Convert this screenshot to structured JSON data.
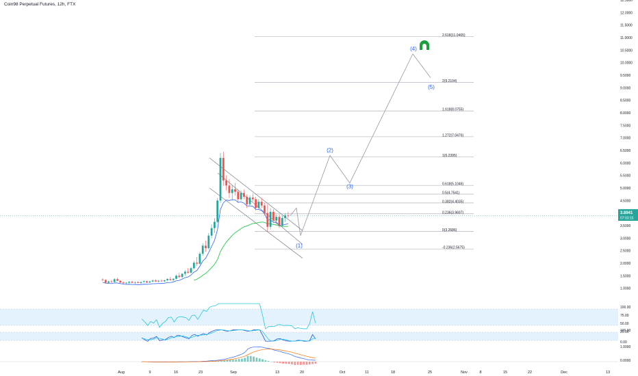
{
  "header": {
    "title": "Coin98 Perpetual Futures, 12h, FTX"
  },
  "price_badge": {
    "price": "3.8941",
    "countdown": "07:03:15"
  },
  "colors": {
    "up": "#26a69a",
    "down": "#ef5350",
    "fib": "#b2b5be",
    "channel": "#787b86",
    "projection": "#9598a1",
    "wave_label": "#2962ff",
    "ema_fast": "#2962ff",
    "ema_slow": "#26c64b",
    "rsi": "#26c6da",
    "band": "#e3f2fd",
    "stoch_k": "#1e53e5",
    "stoch_d": "#26c6da",
    "macd": "#2962ff",
    "signal": "#ff6d00"
  },
  "chart_data": {
    "type": "candlestick",
    "price_axis": {
      "min": 0.5,
      "max": 12.5,
      "ticks": [
        "12.5000",
        "12.0000",
        "11.5000",
        "11.0000",
        "10.5000",
        "10.0000",
        "9.5000",
        "9.0000",
        "8.5000",
        "8.0000",
        "7.5000",
        "7.0000",
        "6.5000",
        "6.0000",
        "5.5000",
        "5.0000",
        "4.5000",
        "4.0000",
        "3.5000",
        "3.0000",
        "2.5000",
        "2.0000",
        "1.5000",
        "1.0000"
      ]
    },
    "x_axis": {
      "labels": [
        "Aug",
        "9",
        "16",
        "23",
        "Sep",
        "13",
        "20",
        "Oct",
        "11",
        "18",
        "25",
        "Nov",
        "8",
        "15",
        "22",
        "Dec",
        "13"
      ]
    },
    "fib_levels": [
      {
        "label": "2.618(11.0465)",
        "value": 11.0465
      },
      {
        "label": "2(9.2104)",
        "value": 9.2104
      },
      {
        "label": "1.618(8.0755)",
        "value": 8.0755
      },
      {
        "label": "1.272(7.0476)",
        "value": 7.0476
      },
      {
        "label": "1(6.2395)",
        "value": 6.2395
      },
      {
        "label": "0.618(5.1046)",
        "value": 5.1046
      },
      {
        "label": "0.5(4.7541)",
        "value": 4.7541
      },
      {
        "label": "0.382(4.4035)",
        "value": 4.4035
      },
      {
        "label": "0.236(3.9697)",
        "value": 3.9697
      },
      {
        "label": "0(3.2686)",
        "value": 3.2686
      },
      {
        "label": "-0.236(2.5675)",
        "value": 2.5675
      }
    ],
    "waves": [
      {
        "label": "(1)",
        "price": 2.85
      },
      {
        "label": "(2)",
        "price": 6.35
      },
      {
        "label": "(3)",
        "price": 5.2
      },
      {
        "label": "(4)",
        "price": 10.4
      },
      {
        "label": "(5)",
        "price": 9.2
      }
    ],
    "projection_prices": [
      3.9,
      4.2,
      3.1,
      6.3,
      5.2,
      10.35,
      9.4
    ],
    "candles": [
      [
        1.35,
        1.4,
        1.28,
        1.33
      ],
      [
        1.33,
        1.36,
        1.2,
        1.22
      ],
      [
        1.22,
        1.3,
        1.18,
        1.27
      ],
      [
        1.27,
        1.33,
        1.22,
        1.25
      ],
      [
        1.25,
        1.4,
        1.24,
        1.36
      ],
      [
        1.36,
        1.42,
        1.28,
        1.3
      ],
      [
        1.3,
        1.33,
        1.2,
        1.23
      ],
      [
        1.23,
        1.28,
        1.18,
        1.2
      ],
      [
        1.2,
        1.25,
        1.16,
        1.22
      ],
      [
        1.22,
        1.28,
        1.19,
        1.26
      ],
      [
        1.26,
        1.3,
        1.2,
        1.22
      ],
      [
        1.22,
        1.27,
        1.18,
        1.24
      ],
      [
        1.24,
        1.29,
        1.2,
        1.21
      ],
      [
        1.21,
        1.26,
        1.18,
        1.25
      ],
      [
        1.25,
        1.32,
        1.22,
        1.28
      ],
      [
        1.28,
        1.3,
        1.2,
        1.23
      ],
      [
        1.23,
        1.3,
        1.21,
        1.27
      ],
      [
        1.27,
        1.35,
        1.24,
        1.31
      ],
      [
        1.31,
        1.36,
        1.25,
        1.27
      ],
      [
        1.27,
        1.33,
        1.24,
        1.3
      ],
      [
        1.3,
        1.36,
        1.26,
        1.28
      ],
      [
        1.28,
        1.34,
        1.25,
        1.32
      ],
      [
        1.32,
        1.4,
        1.28,
        1.37
      ],
      [
        1.37,
        1.45,
        1.3,
        1.33
      ],
      [
        1.33,
        1.4,
        1.28,
        1.38
      ],
      [
        1.38,
        1.55,
        1.35,
        1.5
      ],
      [
        1.5,
        1.62,
        1.4,
        1.45
      ],
      [
        1.45,
        1.6,
        1.42,
        1.58
      ],
      [
        1.58,
        1.72,
        1.5,
        1.66
      ],
      [
        1.66,
        1.8,
        1.58,
        1.62
      ],
      [
        1.62,
        1.85,
        1.6,
        1.8
      ],
      [
        1.8,
        2.1,
        1.75,
        2.02
      ],
      [
        2.02,
        2.25,
        1.9,
        1.98
      ],
      [
        1.98,
        2.45,
        1.95,
        2.38
      ],
      [
        2.38,
        2.8,
        2.3,
        2.7
      ],
      [
        2.7,
        2.9,
        2.45,
        2.6
      ],
      [
        2.6,
        3.2,
        2.55,
        3.1
      ],
      [
        3.1,
        3.55,
        3.0,
        3.4
      ],
      [
        3.4,
        3.8,
        3.2,
        3.65
      ],
      [
        3.65,
        4.6,
        3.6,
        4.5
      ],
      [
        4.5,
        6.4,
        4.4,
        6.2
      ],
      [
        6.2,
        6.45,
        5.1,
        5.3
      ],
      [
        5.3,
        5.5,
        4.9,
        5.1
      ],
      [
        5.1,
        5.35,
        4.6,
        4.8
      ],
      [
        4.8,
        5.1,
        4.5,
        4.95
      ],
      [
        4.95,
        5.2,
        4.7,
        4.85
      ],
      [
        4.85,
        4.95,
        4.4,
        4.55
      ],
      [
        4.55,
        4.9,
        4.5,
        4.8
      ],
      [
        4.8,
        4.95,
        4.55,
        4.65
      ],
      [
        4.65,
        4.75,
        4.2,
        4.35
      ],
      [
        4.35,
        4.7,
        4.3,
        4.62
      ],
      [
        4.62,
        4.8,
        4.45,
        4.55
      ],
      [
        4.55,
        4.65,
        4.1,
        4.2
      ],
      [
        4.2,
        4.55,
        4.15,
        4.45
      ],
      [
        4.45,
        4.6,
        4.2,
        4.3
      ],
      [
        4.3,
        4.4,
        3.9,
        4.0
      ],
      [
        4.0,
        4.35,
        3.25,
        3.45
      ],
      [
        3.45,
        4.2,
        3.35,
        4.05
      ],
      [
        4.05,
        4.15,
        3.6,
        3.7
      ],
      [
        3.7,
        3.95,
        3.55,
        3.85
      ],
      [
        3.85,
        3.95,
        3.4,
        3.5
      ],
      [
        3.5,
        3.9,
        3.45,
        3.8
      ],
      [
        3.8,
        4.0,
        3.65,
        3.9
      ],
      [
        3.9,
        4.05,
        3.8,
        3.89
      ]
    ],
    "indicator_axes": {
      "rsi": [
        "100.00",
        "75.00",
        "50.00",
        "25.00"
      ],
      "stoch": [
        "100.00",
        "0.00"
      ],
      "macd": [
        "1.0000",
        "0.0000"
      ]
    }
  }
}
